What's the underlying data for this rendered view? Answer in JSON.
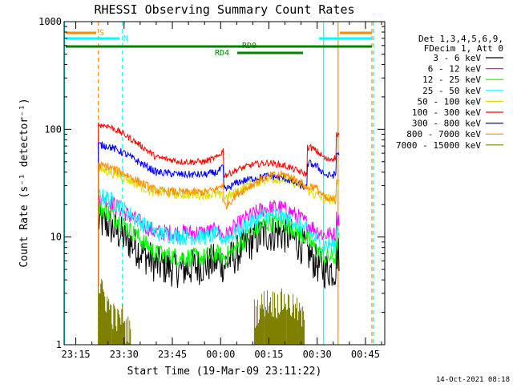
{
  "chart_data": {
    "type": "line",
    "title": "RHESSI Observing Summary Count Rates",
    "xlabel": "Start Time (19-Mar-09 23:11:22)",
    "ylabel": "Count Rate (s⁻¹ detector⁻¹)",
    "y_scale": "log",
    "ylim": [
      1,
      1000
    ],
    "y_ticks": [
      {
        "value": 1,
        "label": "1"
      },
      {
        "value": 10,
        "label": "10"
      },
      {
        "value": 100,
        "label": "100"
      },
      {
        "value": 1000,
        "label": "1000"
      }
    ],
    "xlim": [
      "23:11:22",
      "00:51:00"
    ],
    "x_ticks": [
      "23:15",
      "23:30",
      "23:45",
      "00:00",
      "00:15",
      "00:30",
      "00:45"
    ],
    "grid": false,
    "legend_position": "right",
    "legend_header": [
      "Det 1,3,4,5,6,9,",
      "FDecim 1, Att 0"
    ],
    "series": [
      {
        "name": "3 - 6 keV",
        "color": "#000000",
        "points": [
          [
            "23:22",
            14
          ],
          [
            "23:25",
            13
          ],
          [
            "23:30",
            10
          ],
          [
            "23:36",
            7
          ],
          [
            "23:40",
            5.5
          ],
          [
            "23:48",
            5
          ],
          [
            "23:55",
            5.5
          ],
          [
            "23:59",
            6
          ],
          [
            "00:01",
            5.5
          ],
          [
            "00:04",
            6.5
          ],
          [
            "00:08",
            8.5
          ],
          [
            "00:13",
            10.5
          ],
          [
            "00:18",
            11
          ],
          [
            "00:22",
            10
          ],
          [
            "00:26",
            8
          ],
          [
            "00:29",
            6
          ],
          [
            "00:32",
            5
          ],
          [
            "00:36",
            5
          ],
          [
            "00:37",
            7
          ]
        ]
      },
      {
        "name": "6 - 12 keV",
        "color": "#ff00ff",
        "points": [
          [
            "23:22",
            23
          ],
          [
            "23:25",
            22
          ],
          [
            "23:30",
            17
          ],
          [
            "23:36",
            13
          ],
          [
            "23:40",
            11
          ],
          [
            "23:48",
            11
          ],
          [
            "23:55",
            11
          ],
          [
            "23:59",
            11.5
          ],
          [
            "00:01",
            10
          ],
          [
            "00:04",
            12
          ],
          [
            "00:08",
            15
          ],
          [
            "00:13",
            18
          ],
          [
            "00:18",
            19
          ],
          [
            "00:22",
            17
          ],
          [
            "00:26",
            14
          ],
          [
            "00:29",
            12
          ],
          [
            "00:32",
            10.5
          ],
          [
            "00:36",
            10.5
          ],
          [
            "00:37",
            15
          ]
        ]
      },
      {
        "name": "12 - 25 keV",
        "color": "#00ff00",
        "points": [
          [
            "23:22",
            19
          ],
          [
            "23:25",
            17
          ],
          [
            "23:30",
            13
          ],
          [
            "23:36",
            9
          ],
          [
            "23:40",
            7
          ],
          [
            "23:48",
            6.5
          ],
          [
            "23:55",
            6.5
          ],
          [
            "23:59",
            7
          ],
          [
            "00:01",
            6.5
          ],
          [
            "00:04",
            7.5
          ],
          [
            "00:08",
            10
          ],
          [
            "00:13",
            13
          ],
          [
            "00:18",
            14
          ],
          [
            "00:22",
            12.5
          ],
          [
            "00:26",
            10
          ],
          [
            "00:29",
            8
          ],
          [
            "00:32",
            6.5
          ],
          [
            "00:36",
            6.5
          ],
          [
            "00:37",
            9
          ]
        ]
      },
      {
        "name": "25 - 50 keV",
        "color": "#00ffff",
        "points": [
          [
            "23:22",
            24
          ],
          [
            "23:25",
            23
          ],
          [
            "23:30",
            18
          ],
          [
            "23:36",
            13
          ],
          [
            "23:40",
            11
          ],
          [
            "23:48",
            10
          ],
          [
            "23:55",
            10
          ],
          [
            "23:59",
            10.5
          ],
          [
            "00:01",
            9.5
          ],
          [
            "00:04",
            10.5
          ],
          [
            "00:08",
            13
          ],
          [
            "00:13",
            15.5
          ],
          [
            "00:18",
            16
          ],
          [
            "00:22",
            14.5
          ],
          [
            "00:26",
            12
          ],
          [
            "00:29",
            10
          ],
          [
            "00:32",
            8.5
          ],
          [
            "00:36",
            8.5
          ],
          [
            "00:37",
            12
          ]
        ]
      },
      {
        "name": "50 - 100 keV",
        "color": "#dddd00",
        "points": [
          [
            "23:22",
            43
          ],
          [
            "23:25",
            41
          ],
          [
            "23:30",
            36
          ],
          [
            "23:36",
            29
          ],
          [
            "23:40",
            26
          ],
          [
            "23:48",
            25
          ],
          [
            "23:55",
            25
          ],
          [
            "23:59",
            25
          ],
          [
            "00:01",
            23
          ],
          [
            "00:04",
            25
          ],
          [
            "00:08",
            30
          ],
          [
            "00:13",
            34
          ],
          [
            "00:18",
            35
          ],
          [
            "00:22",
            33
          ],
          [
            "00:26",
            29
          ],
          [
            "00:29",
            25
          ],
          [
            "00:32",
            23
          ],
          [
            "00:36",
            22
          ],
          [
            "00:37",
            30
          ]
        ]
      },
      {
        "name": "100 - 300 keV",
        "color": "#ff0000",
        "points": [
          [
            "23:22",
            110
          ],
          [
            "23:25",
            108
          ],
          [
            "23:30",
            90
          ],
          [
            "23:36",
            68
          ],
          [
            "23:40",
            55
          ],
          [
            "23:48",
            50
          ],
          [
            "23:55",
            50
          ],
          [
            "23:59",
            55
          ],
          [
            "00:01",
            65
          ],
          [
            "00:02",
            38
          ],
          [
            "00:05",
            42
          ],
          [
            "00:10",
            47
          ],
          [
            "00:15",
            49
          ],
          [
            "00:20",
            46
          ],
          [
            "00:25",
            40
          ],
          [
            "00:27",
            38
          ],
          [
            "00:28",
            68
          ],
          [
            "00:30",
            62
          ],
          [
            "00:33",
            52
          ],
          [
            "00:36",
            55
          ],
          [
            "00:37",
            90
          ]
        ]
      },
      {
        "name": "300 - 800 keV",
        "color": "#0000ff",
        "points": [
          [
            "23:22",
            72
          ],
          [
            "23:25",
            70
          ],
          [
            "23:30",
            60
          ],
          [
            "23:36",
            47
          ],
          [
            "23:40",
            40
          ],
          [
            "23:48",
            38
          ],
          [
            "23:55",
            38
          ],
          [
            "23:59",
            40
          ],
          [
            "00:01",
            45
          ],
          [
            "00:02",
            28
          ],
          [
            "00:05",
            32
          ],
          [
            "00:10",
            35
          ],
          [
            "00:15",
            37
          ],
          [
            "00:20",
            35
          ],
          [
            "00:25",
            30
          ],
          [
            "00:27",
            28
          ],
          [
            "00:28",
            48
          ],
          [
            "00:30",
            45
          ],
          [
            "00:33",
            37
          ],
          [
            "00:36",
            38
          ],
          [
            "00:37",
            60
          ]
        ]
      },
      {
        "name": "800 - 7000 keV",
        "color": "#ff8c00",
        "points": [
          [
            "23:22",
            46
          ],
          [
            "23:25",
            45
          ],
          [
            "23:30",
            39
          ],
          [
            "23:36",
            31
          ],
          [
            "23:40",
            27
          ],
          [
            "23:48",
            26
          ],
          [
            "23:55",
            26
          ],
          [
            "23:59",
            28
          ],
          [
            "00:01",
            32
          ],
          [
            "00:02",
            20
          ],
          [
            "00:05",
            25
          ],
          [
            "00:10",
            31
          ],
          [
            "00:15",
            37
          ],
          [
            "00:20",
            38
          ],
          [
            "00:25",
            32
          ],
          [
            "00:27",
            28
          ],
          [
            "00:28",
            30
          ],
          [
            "00:30",
            28
          ],
          [
            "00:33",
            22
          ],
          [
            "00:36",
            22
          ],
          [
            "00:37",
            35
          ]
        ]
      },
      {
        "name": "7000 - 15000 keV",
        "color": "#808000",
        "points": [
          [
            "23:22",
            2.8
          ],
          [
            "23:24",
            2.2
          ],
          [
            "23:26",
            1.6
          ],
          [
            "23:28",
            1.3
          ],
          [
            "23:30",
            1.5
          ],
          [
            "23:31",
            1.1
          ],
          [
            "00:11",
            1.6
          ],
          [
            "00:14",
            2.0
          ],
          [
            "00:17",
            1.9
          ],
          [
            "00:20",
            2.0
          ],
          [
            "00:24",
            1.6
          ],
          [
            "00:26",
            1.3
          ]
        ]
      }
    ],
    "annotations": {
      "flags": [
        {
          "label": "S",
          "color": "#ff8c00"
        },
        {
          "label": "N",
          "color": "#00ffff"
        },
        {
          "label": "RD0",
          "color": "#008000"
        },
        {
          "label": "RD4",
          "color": "#008000"
        }
      ],
      "vertical_markers": [
        {
          "time": "23:11:30",
          "color": "#00ffff",
          "dash": false
        },
        {
          "time": "23:22:00",
          "color": "#ff8c00",
          "dash": true
        },
        {
          "time": "23:29:30",
          "color": "#00ffff",
          "dash": true
        },
        {
          "time": "00:32:00",
          "color": "#00ffff",
          "dash": false
        },
        {
          "time": "00:36:30",
          "color": "#ff8c00",
          "dash": false
        },
        {
          "time": "00:47:00",
          "color": "#ff8c00",
          "dash": true
        },
        {
          "time": "00:47:30",
          "color": "#00ffff",
          "dash": true
        }
      ]
    },
    "footer_timestamp": "14-Oct-2021 08:18"
  }
}
